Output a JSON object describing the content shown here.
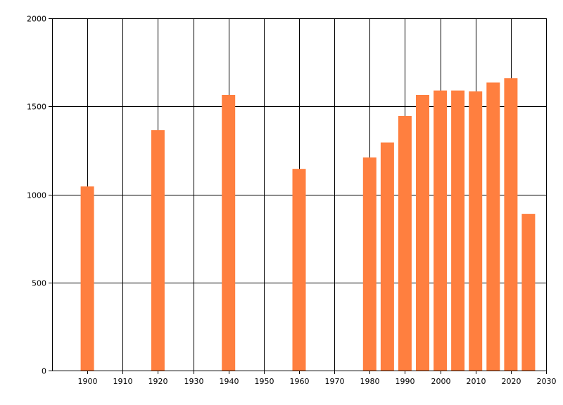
{
  "chart_data": {
    "type": "bar",
    "title": "",
    "xlabel": "",
    "ylabel": "",
    "x": [
      1900,
      1920,
      1940,
      1960,
      1980,
      1985,
      1990,
      1995,
      2000,
      2005,
      2010,
      2015,
      2020,
      2025
    ],
    "values": [
      1045,
      1365,
      1565,
      1145,
      1210,
      1295,
      1445,
      1565,
      1590,
      1590,
      1585,
      1635,
      1660,
      890
    ],
    "xlim": [
      1890,
      2030
    ],
    "ylim": [
      0,
      2000
    ],
    "xticks": [
      1900,
      1910,
      1920,
      1930,
      1940,
      1950,
      1960,
      1970,
      1980,
      1990,
      2000,
      2010,
      2020,
      2030
    ],
    "yticks": [
      0,
      500,
      1000,
      1500,
      2000
    ],
    "grid": true,
    "bar_color": "#FF7F3F"
  }
}
